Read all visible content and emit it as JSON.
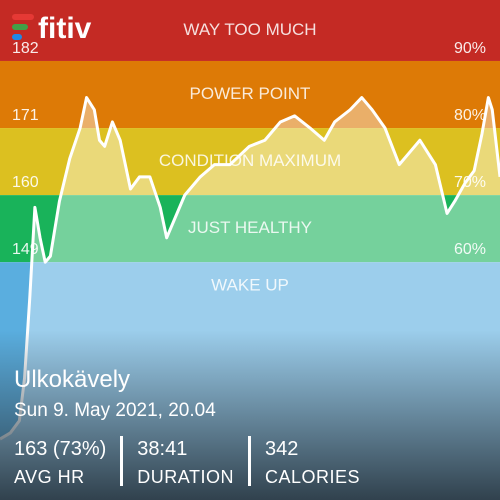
{
  "app": {
    "logo": "fitiv"
  },
  "chart_data": {
    "type": "line",
    "zones": [
      {
        "label": "WAY TOO MUCH",
        "from": 180,
        "to": 190,
        "color": "#c42a24"
      },
      {
        "label": "POWER POINT",
        "from": 169,
        "to": 180,
        "color": "#dd7a06"
      },
      {
        "label": "CONDITION MAXIMUM",
        "from": 158,
        "to": 169,
        "color": "#dcc020"
      },
      {
        "label": "JUST HEALTHY",
        "from": 147,
        "to": 158,
        "color": "#19b35a"
      },
      {
        "label": "WAKE UP",
        "from": 108,
        "to": 147,
        "color": "#5aaedf"
      }
    ],
    "xlim": [
      0,
      38.7
    ],
    "ylim": [
      108,
      190
    ],
    "yticks": [
      149,
      160,
      171,
      182
    ],
    "y2lim": [
      22.7,
      97.3
    ],
    "y2ticks": [
      {
        "value": 60,
        "label": "60%"
      },
      {
        "value": 70,
        "label": "70%"
      },
      {
        "value": 80,
        "label": "80%"
      },
      {
        "value": 90,
        "label": "90%"
      }
    ],
    "x": [
      0,
      0.8,
      1.5,
      1.9,
      2.3,
      2.7,
      3.1,
      3.5,
      3.9,
      4.6,
      5.4,
      6.2,
      6.7,
      7.3,
      7.7,
      8.1,
      8.7,
      9.3,
      10.1,
      10.8,
      11.6,
      12.4,
      12.9,
      13.5,
      14.3,
      15.5,
      16.6,
      17.8,
      19.3,
      20.5,
      21.7,
      22.8,
      24.0,
      25.1,
      25.9,
      27.1,
      28.0,
      28.8,
      29.8,
      30.9,
      31.7,
      32.5,
      33.7,
      34.6,
      35.2,
      36.0,
      36.7,
      37.3,
      37.8,
      38.1,
      38.7
    ],
    "series": [
      {
        "color": "#ffffff",
        "values": [
          118,
          119,
          121,
          128,
          141,
          156,
          151,
          147,
          148,
          157,
          164,
          169,
          174,
          172,
          167,
          166,
          170,
          167,
          159,
          161,
          161,
          156,
          151,
          154,
          158,
          161,
          163,
          163,
          166,
          167,
          170,
          171,
          169,
          167,
          170,
          172,
          174,
          172,
          169,
          163,
          165,
          167,
          163,
          155,
          157,
          160,
          162,
          168,
          174,
          172,
          161
        ]
      }
    ]
  },
  "workout": {
    "title": "Ulkokävely",
    "date": "Sun 9. May 2021, 20.04",
    "stats": [
      {
        "value": "163 (73%)",
        "label": "AVG HR"
      },
      {
        "value": "38:41",
        "label": "DURATION"
      },
      {
        "value": "342",
        "label": "CALORIES"
      }
    ]
  }
}
